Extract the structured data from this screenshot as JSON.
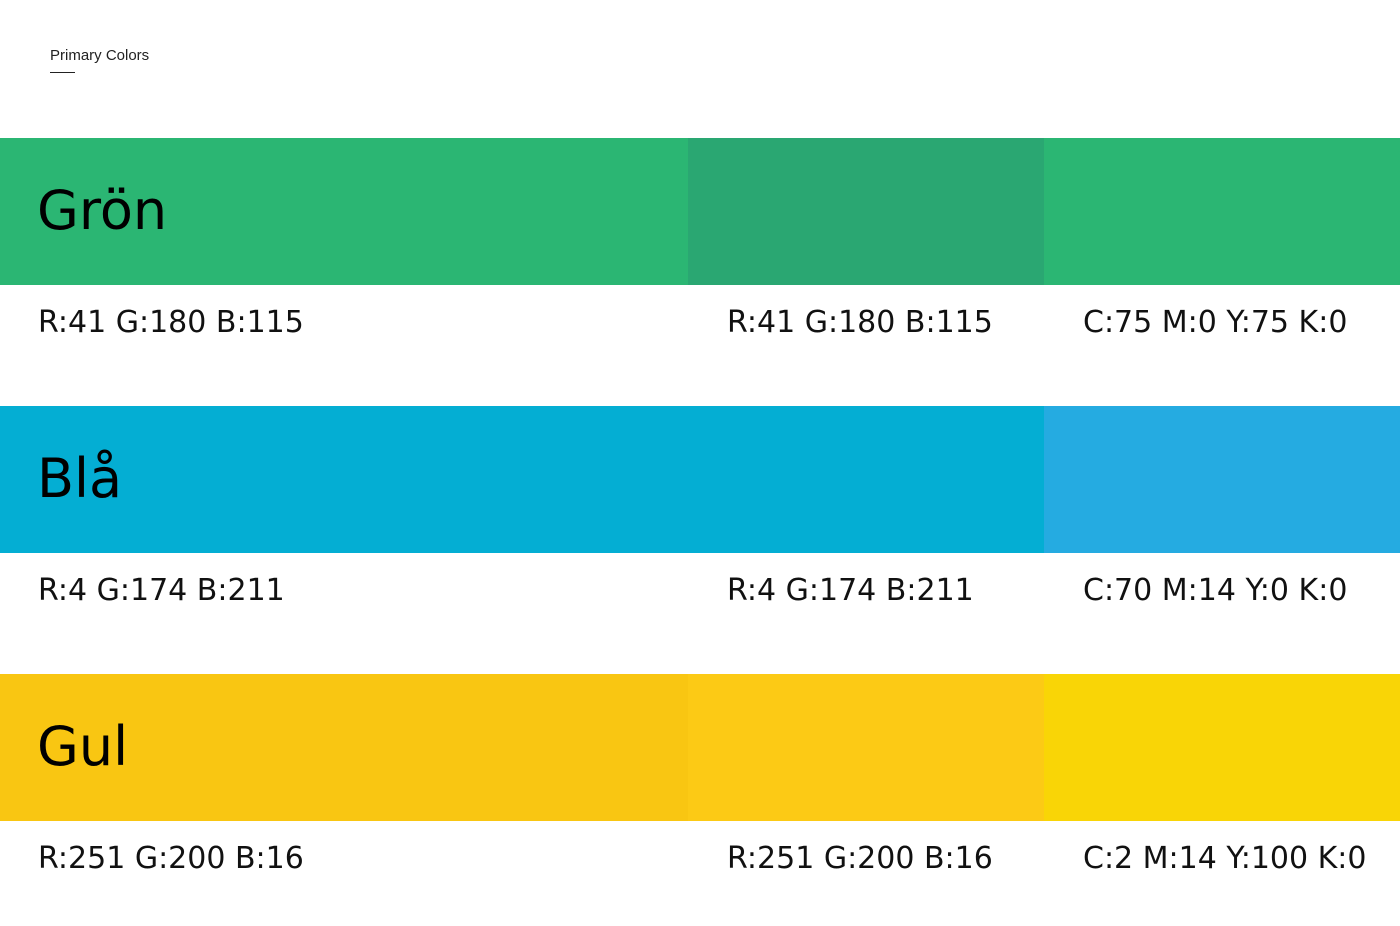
{
  "header": {
    "title": "Primary Colors"
  },
  "colors": [
    {
      "name": "Grön",
      "swatches": [
        "#2bb673",
        "#2aa772",
        "#2bb673"
      ],
      "labels": [
        "R:41 G:180 B:115",
        "R:41 G:180 B:115",
        "C:75 M:0 Y:75 K:0"
      ]
    },
    {
      "name": "Blå",
      "swatches": [
        "#04aed3",
        "#04aed3",
        "#25abe1"
      ],
      "labels": [
        "R:4 G:174 B:211",
        "R:4 G:174 B:211",
        "C:70 M:14 Y:0 K:0"
      ]
    },
    {
      "name": "Gul",
      "swatches": [
        "#f9c612",
        "#fcca15",
        "#f9d506"
      ],
      "labels": [
        "R:251 G:200 B:16",
        "R:251 G:200 B:16",
        "C:2 M:14 Y:100 K:0"
      ]
    }
  ]
}
